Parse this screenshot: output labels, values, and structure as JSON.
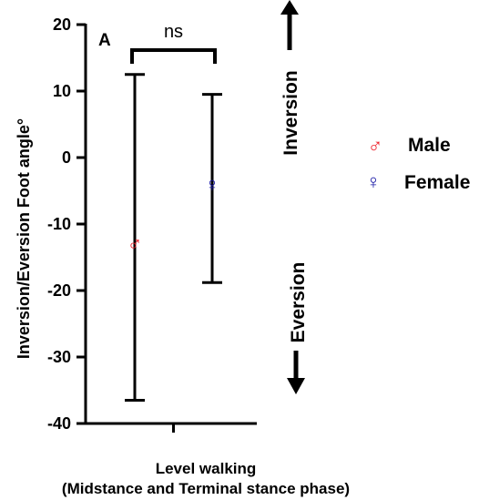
{
  "chart_data": {
    "type": "scatter",
    "panel_label": "A",
    "ylabel": "Inversion/Eversion Foot angle°",
    "xlabel_line1": "Level walking",
    "xlabel_line2": "(Midstance and Terminal stance phase)",
    "ylim": [
      -40,
      20
    ],
    "yticks": [
      -40,
      -30,
      -20,
      -10,
      0,
      10,
      20
    ],
    "ytick_labels": [
      "-40",
      "-30",
      "-20",
      "-10",
      "0",
      "10",
      "20"
    ],
    "significance_label": "ns",
    "direction_labels": {
      "up": "Inversion",
      "down": "Eversion"
    },
    "series": [
      {
        "name": "Male",
        "symbol": "♂",
        "color": "#ee1c25",
        "mean": -12.8,
        "upper": 12.5,
        "lower": -36.5
      },
      {
        "name": "Female",
        "symbol": "♀",
        "color": "#1a1aa6",
        "mean": -4.0,
        "upper": 9.5,
        "lower": -18.8
      }
    ]
  }
}
